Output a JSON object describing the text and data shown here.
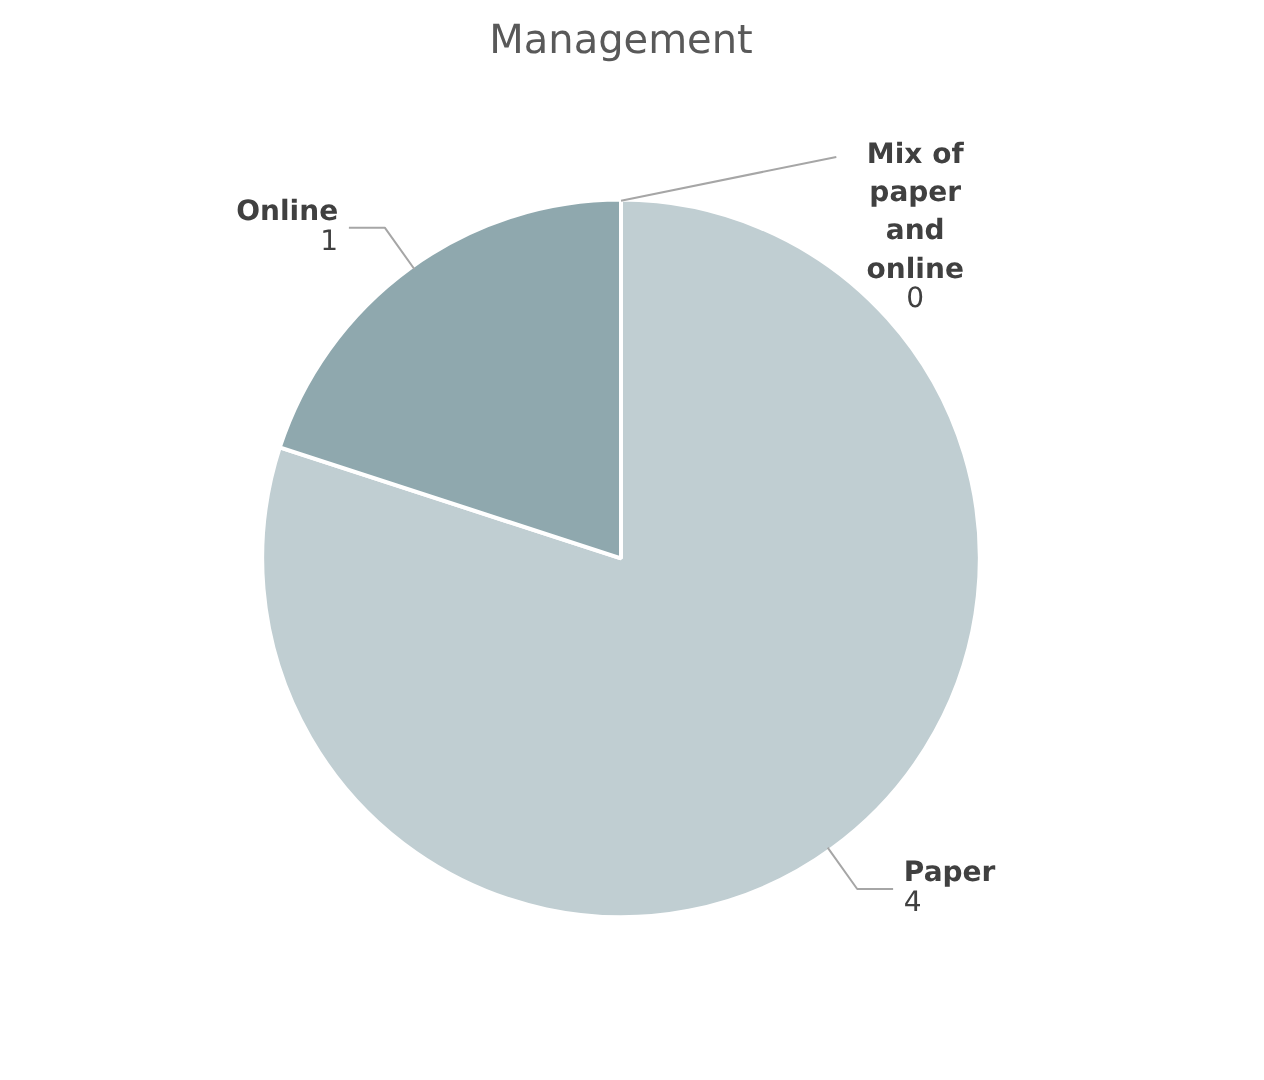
{
  "chart_data": {
    "type": "pie",
    "title": "Management",
    "categories": [
      "Paper",
      "Online",
      "Mix of paper and online"
    ],
    "values": [
      4,
      1,
      0
    ],
    "colors": [
      "#c0ced2",
      "#8fa8ae",
      "#dae2e4"
    ],
    "value_labels": [
      "4",
      "1",
      "0"
    ]
  }
}
